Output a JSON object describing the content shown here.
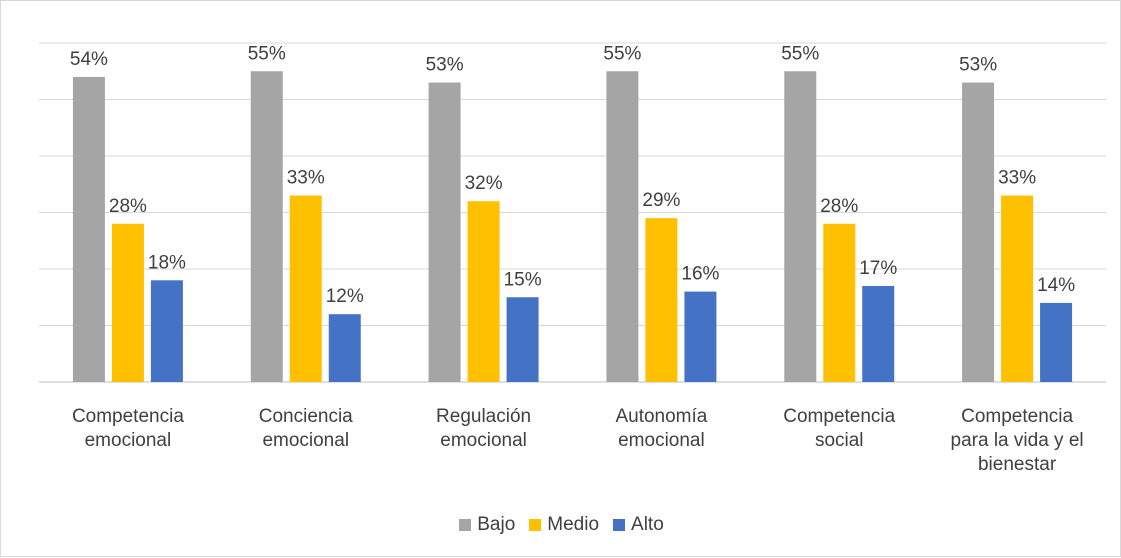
{
  "chart_data": {
    "type": "bar",
    "categories": [
      [
        "Competencia",
        "emocional"
      ],
      [
        "Conciencia",
        "emocional"
      ],
      [
        "Regulación",
        "emocional"
      ],
      [
        "Autonomía",
        "emocional"
      ],
      [
        "Competencia",
        "social"
      ],
      [
        "Competencia",
        "para la vida y el",
        "bienestar"
      ]
    ],
    "series": [
      {
        "name": "Bajo",
        "color": "#a5a5a5",
        "values": [
          54,
          55,
          53,
          55,
          55,
          53
        ],
        "labels": [
          "54%",
          "55%",
          "53%",
          "55%",
          "55%",
          "53%"
        ]
      },
      {
        "name": "Medio",
        "color": "#ffc000",
        "values": [
          28,
          33,
          32,
          29,
          28,
          33
        ],
        "labels": [
          "28%",
          "33%",
          "32%",
          "29%",
          "28%",
          "33%"
        ]
      },
      {
        "name": "Alto",
        "color": "#4472c4",
        "values": [
          18,
          12,
          15,
          16,
          17,
          14
        ],
        "labels": [
          "18%",
          "12%",
          "15%",
          "16%",
          "17%",
          "14%"
        ]
      }
    ],
    "ylim": [
      0,
      60
    ],
    "gridlines": [
      0,
      10,
      20,
      30,
      40,
      50,
      60
    ],
    "grid": true,
    "legend_position": "bottom",
    "title": "",
    "xlabel": "",
    "ylabel": ""
  }
}
